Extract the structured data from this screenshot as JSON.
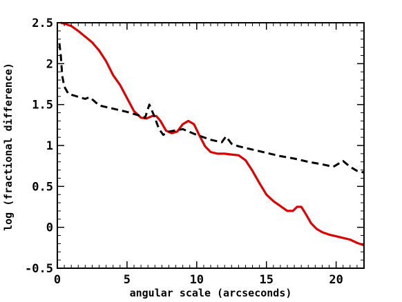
{
  "chart_data": {
    "type": "line",
    "title": "",
    "xlabel": "angular scale (arcseconds)",
    "ylabel": "log (fractional difference)",
    "xlim": [
      0,
      22
    ],
    "ylim": [
      -0.5,
      2.5
    ],
    "x_ticks": [
      0,
      5,
      10,
      15,
      20
    ],
    "x_tick_labels": [
      "0",
      "5",
      "10",
      "15",
      "20"
    ],
    "y_ticks": [
      -0.5,
      0,
      0.5,
      1,
      1.5,
      2,
      2.5
    ],
    "y_tick_labels": [
      "-0.5",
      "0",
      "0.5",
      "1",
      "1.5",
      "2",
      "2.5"
    ],
    "grid": false,
    "legend": "none",
    "series": [
      {
        "color": "#e00000",
        "style": "solid",
        "points": [
          [
            0.25,
            2.5
          ],
          [
            0.5,
            2.49
          ],
          [
            1.0,
            2.46
          ],
          [
            1.5,
            2.4
          ],
          [
            2.0,
            2.33
          ],
          [
            2.5,
            2.26
          ],
          [
            3.0,
            2.16
          ],
          [
            3.5,
            2.03
          ],
          [
            4.0,
            1.86
          ],
          [
            4.5,
            1.74
          ],
          [
            5.0,
            1.58
          ],
          [
            5.5,
            1.42
          ],
          [
            6.0,
            1.34
          ],
          [
            6.4,
            1.33
          ],
          [
            6.8,
            1.36
          ],
          [
            7.1,
            1.36
          ],
          [
            7.4,
            1.3
          ],
          [
            7.8,
            1.18
          ],
          [
            8.2,
            1.15
          ],
          [
            8.6,
            1.17
          ],
          [
            9.0,
            1.26
          ],
          [
            9.4,
            1.3
          ],
          [
            9.8,
            1.26
          ],
          [
            10.2,
            1.12
          ],
          [
            10.6,
            0.99
          ],
          [
            11.0,
            0.92
          ],
          [
            11.5,
            0.9
          ],
          [
            12.0,
            0.9
          ],
          [
            12.5,
            0.89
          ],
          [
            13.0,
            0.88
          ],
          [
            13.5,
            0.82
          ],
          [
            14.0,
            0.69
          ],
          [
            14.5,
            0.54
          ],
          [
            15.0,
            0.4
          ],
          [
            15.5,
            0.32
          ],
          [
            16.0,
            0.26
          ],
          [
            16.5,
            0.2
          ],
          [
            16.9,
            0.2
          ],
          [
            17.2,
            0.25
          ],
          [
            17.5,
            0.25
          ],
          [
            17.8,
            0.17
          ],
          [
            18.2,
            0.05
          ],
          [
            18.6,
            -0.02
          ],
          [
            19.0,
            -0.06
          ],
          [
            19.5,
            -0.09
          ],
          [
            20.0,
            -0.11
          ],
          [
            20.5,
            -0.13
          ],
          [
            21.0,
            -0.15
          ],
          [
            21.5,
            -0.19
          ],
          [
            22.0,
            -0.22
          ]
        ]
      },
      {
        "color": "#000000",
        "style": "dashed",
        "points": [
          [
            0.15,
            2.25
          ],
          [
            0.25,
            2.1
          ],
          [
            0.35,
            1.85
          ],
          [
            0.5,
            1.72
          ],
          [
            0.8,
            1.63
          ],
          [
            1.2,
            1.61
          ],
          [
            2.0,
            1.57
          ],
          [
            2.3,
            1.59
          ],
          [
            2.6,
            1.55
          ],
          [
            3.0,
            1.49
          ],
          [
            4.0,
            1.45
          ],
          [
            5.0,
            1.41
          ],
          [
            6.0,
            1.36
          ],
          [
            6.3,
            1.34
          ],
          [
            6.6,
            1.5
          ],
          [
            6.9,
            1.38
          ],
          [
            7.3,
            1.2
          ],
          [
            7.6,
            1.13
          ],
          [
            8.0,
            1.17
          ],
          [
            9.0,
            1.2
          ],
          [
            10.0,
            1.13
          ],
          [
            11.0,
            1.07
          ],
          [
            11.8,
            1.04
          ],
          [
            12.1,
            1.11
          ],
          [
            12.5,
            1.02
          ],
          [
            13.0,
            0.99
          ],
          [
            14.0,
            0.95
          ],
          [
            15.0,
            0.91
          ],
          [
            16.0,
            0.87
          ],
          [
            17.0,
            0.84
          ],
          [
            18.0,
            0.8
          ],
          [
            19.0,
            0.77
          ],
          [
            19.8,
            0.74
          ],
          [
            20.2,
            0.78
          ],
          [
            20.5,
            0.81
          ],
          [
            21.0,
            0.74
          ],
          [
            21.5,
            0.69
          ],
          [
            22.0,
            0.67
          ]
        ]
      }
    ]
  }
}
